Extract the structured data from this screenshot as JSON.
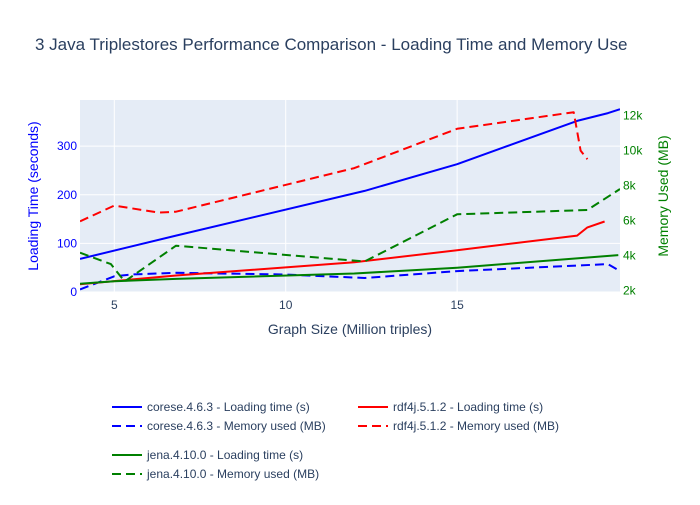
{
  "chart_data": {
    "type": "line",
    "title": "3 Java Triplestores Performance Comparison - Loading Time and Memory Use",
    "xlabel": "Graph Size (Million triples)",
    "ylabel": "Loading Time (seconds)",
    "y2label": "Memory Used (MB)",
    "xlim": [
      4,
      19.75
    ],
    "ylim": [
      0,
      395
    ],
    "y2lim": [
      1900,
      12900
    ],
    "x_ticks": [
      5,
      10,
      15
    ],
    "y_ticks": [
      0,
      100,
      200,
      300
    ],
    "y2_ticks": [
      2000,
      4000,
      6000,
      8000,
      10000,
      12000
    ],
    "y2_tick_labels": [
      "2k",
      "4k",
      "6k",
      "8k",
      "10k",
      "12k"
    ],
    "grid": true,
    "legend_position": "bottom",
    "series": [
      {
        "name": "corese.4.6.3 - Loading time (s)",
        "axis": "y",
        "color": "#0000ff",
        "dash": "solid",
        "x": [
          4,
          6.8,
          12.3,
          15,
          18.5,
          19.4,
          19.75
        ],
        "y": [
          68,
          116,
          208,
          263,
          352,
          368,
          376
        ]
      },
      {
        "name": "corese.4.6.3 - Memory used (MB)",
        "axis": "y2",
        "color": "#0000ff",
        "dash": "dash",
        "x": [
          4,
          5,
          5.5,
          6.8,
          10,
          12.3,
          15,
          19.4,
          19.75
        ],
        "y": [
          2050,
          2800,
          2900,
          3000,
          2900,
          2700,
          3100,
          3500,
          3100
        ]
      },
      {
        "name": "rdf4j.5.1.2 - Loading time (s)",
        "axis": "y",
        "color": "#ff0000",
        "dash": "solid",
        "x": [
          4,
          6.8,
          12,
          15,
          18.5,
          18.8,
          19.3
        ],
        "y": [
          16,
          34,
          61,
          86,
          116,
          133,
          145
        ]
      },
      {
        "name": "rdf4j.5.1.2 - Memory used (MB)",
        "axis": "y2",
        "color": "#ff0000",
        "dash": "dash",
        "x": [
          4,
          5,
          6.3,
          6.8,
          12,
          15,
          18.4,
          18.6,
          18.8
        ],
        "y": [
          5950,
          6850,
          6450,
          6500,
          9000,
          11250,
          12200,
          10000,
          9500
        ]
      },
      {
        "name": "jena.4.10.0 - Loading time (s)",
        "axis": "y",
        "color": "#008000",
        "dash": "solid",
        "x": [
          4,
          5,
          6.8,
          12,
          15,
          19.7
        ],
        "y": [
          17,
          22,
          27,
          38,
          50,
          76
        ]
      },
      {
        "name": "jena.4.10.0 - Memory used (MB)",
        "axis": "y2",
        "color": "#008000",
        "dash": "dash",
        "x": [
          4,
          4.9,
          5.3,
          6.8,
          12.3,
          15,
          18.8,
          19.75
        ],
        "y": [
          4150,
          3500,
          2500,
          4550,
          3650,
          6350,
          6600,
          7800
        ]
      }
    ]
  }
}
